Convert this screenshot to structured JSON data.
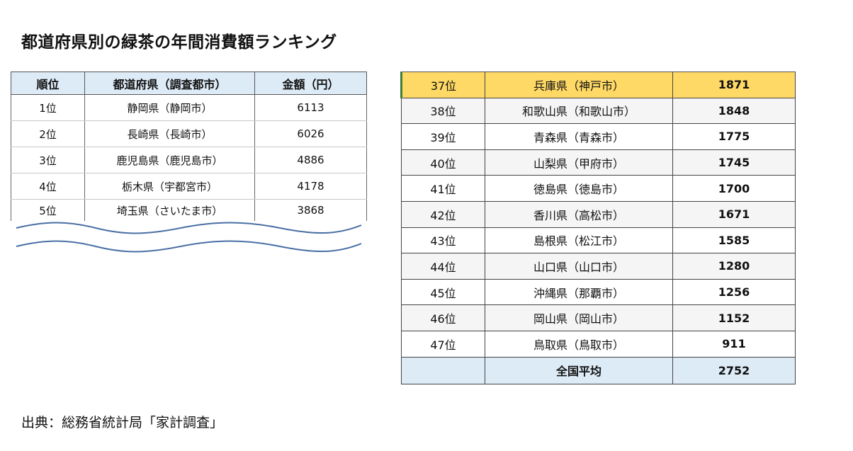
{
  "title": "都道府県別の緑茶の年間消費額ランキング",
  "left_table": {
    "headers": [
      "順位",
      "都道府県（調査都市）",
      "金額（円）"
    ],
    "rows": [
      {
        "rank": "1位",
        "pref": "静岡県（静岡市）",
        "amount": "6113"
      },
      {
        "rank": "2位",
        "pref": "長崎県（長崎市）",
        "amount": "6026"
      },
      {
        "rank": "3位",
        "pref": "鹿児島県（鹿児島市）",
        "amount": "4886"
      },
      {
        "rank": "4位",
        "pref": "栃木県（宇都宮市）",
        "amount": "4178"
      },
      {
        "rank": "5位",
        "pref": "埼玉県（さいたま市）",
        "amount": "3868"
      }
    ]
  },
  "right_table": {
    "rows": [
      {
        "rank": "37位",
        "pref": "兵庫県（神戸市）",
        "amount": "1871"
      },
      {
        "rank": "38位",
        "pref": "和歌山県（和歌山市）",
        "amount": "1848"
      },
      {
        "rank": "39位",
        "pref": "青森県（青森市）",
        "amount": "1775"
      },
      {
        "rank": "40位",
        "pref": "山梨県（甲府市）",
        "amount": "1745"
      },
      {
        "rank": "41位",
        "pref": "徳島県（徳島市）",
        "amount": "1700"
      },
      {
        "rank": "42位",
        "pref": "香川県（高松市）",
        "amount": "1671"
      },
      {
        "rank": "43位",
        "pref": "島根県（松江市）",
        "amount": "1585"
      },
      {
        "rank": "44位",
        "pref": "山口県（山口市）",
        "amount": "1280"
      },
      {
        "rank": "45位",
        "pref": "沖縄県（那覇市）",
        "amount": "1256"
      },
      {
        "rank": "46位",
        "pref": "岡山県（岡山市）",
        "amount": "1152"
      },
      {
        "rank": "47位",
        "pref": "鳥取県（鳥取市）",
        "amount": "911"
      }
    ],
    "average": {
      "label": "全国平均",
      "amount": "2752"
    }
  },
  "source": "出典：総務省統計局「家計調査」",
  "colors": {
    "header_blue": "#ddebf7",
    "highlight_yellow": "#ffd966",
    "wave_blue": "#4a6fa5"
  }
}
